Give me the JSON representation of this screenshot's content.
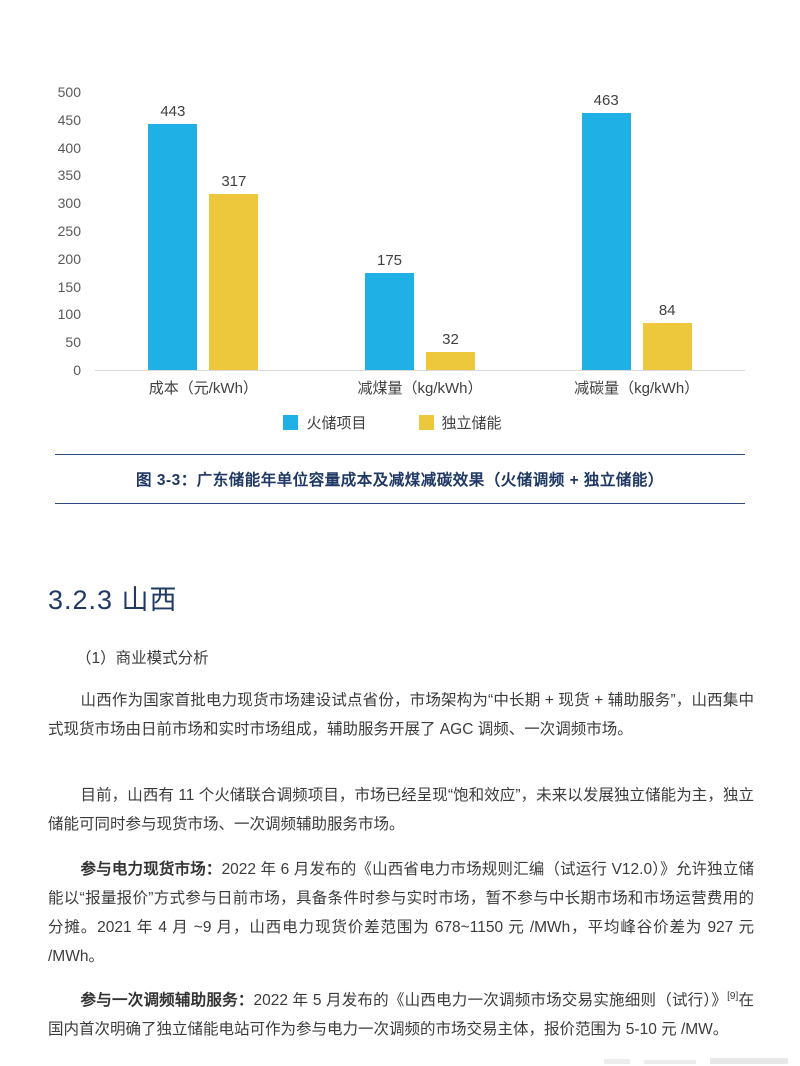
{
  "chart_data": {
    "type": "bar",
    "categories": [
      "成本（元/kWh）",
      "减煤量（kg/kWh）",
      "减碳量（kg/kWh）"
    ],
    "series": [
      {
        "name": "火储项目",
        "color": "#1fb0e6",
        "values": [
          443,
          175,
          463
        ]
      },
      {
        "name": "独立储能",
        "color": "#edc83c",
        "values": [
          317,
          32,
          84
        ]
      }
    ],
    "title": "",
    "xlabel": "",
    "ylabel": "",
    "ylim": [
      0,
      500
    ],
    "yticks": [
      0,
      50,
      100,
      150,
      200,
      250,
      300,
      350,
      400,
      450,
      500
    ],
    "grid": false,
    "legend_position": "bottom"
  },
  "caption": {
    "text": "图 3-3：广东储能年单位容量成本及减煤减碳效果（火储调频 + 独立储能）"
  },
  "section": {
    "heading": "3.2.3 山西",
    "subheading": "（1）商业模式分析"
  },
  "paragraphs": {
    "p1": "山西作为国家首批电力现货市场建设试点省份，市场架构为“中长期 + 现货 + 辅助服务”，山西集中式现货市场由日前市场和实时市场组成，辅助服务开展了 AGC 调频、一次调频市场。",
    "p2": "目前，山西有 11 个火储联合调频项目，市场已经呈现“饱和效应”，未来以发展独立储能为主，独立储能可同时参与现货市场、一次调频辅助服务市场。",
    "p3_lead": "参与电力现货市场：",
    "p3_text": "2022 年 6 月发布的《山西省电力市场规则汇编（试运行 V12.0）》允许独立储能以“报量报价”方式参与日前市场，具备条件时参与实时市场，暂不参与中长期市场和市场运营费用的分摊。2021 年 4 月 ~9 月，山西电力现货价差范围为 678~1150 元 /MWh，平均峰谷价差为 927 元 /MWh。",
    "p4_lead": "参与一次调频辅助服务：",
    "p4_pre": "2022 年 5 月发布的《山西电力一次调频市场交易实施细则（试行）》",
    "p4_sup": "[9]",
    "p4_post": "在国内首次明确了独立储能电站可作为参与电力一次调频的市场交易主体，报价范围为 5-10 元 /MW。"
  }
}
